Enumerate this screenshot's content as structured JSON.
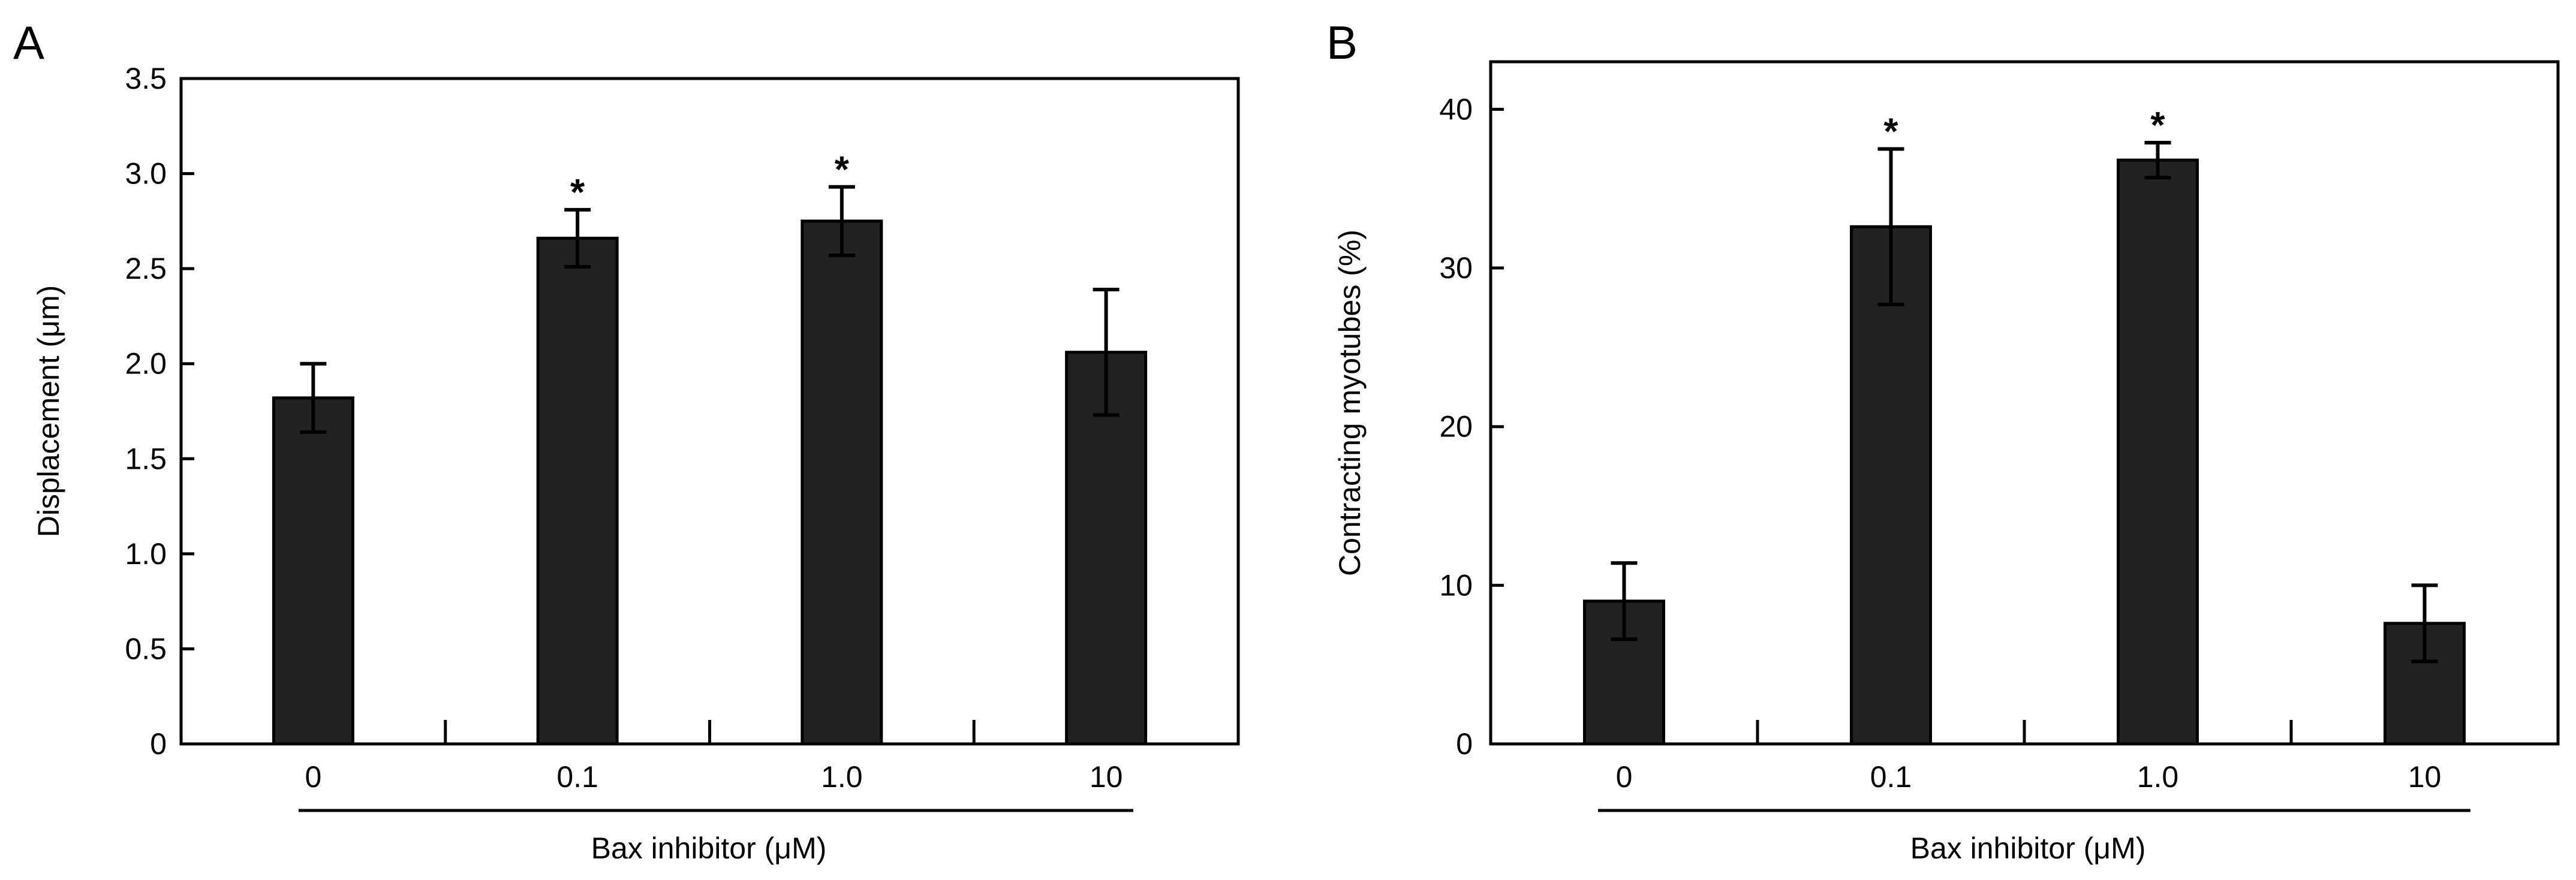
{
  "chart_data": [
    {
      "type": "bar",
      "panel_label": "A",
      "categories": [
        "0",
        "0.1",
        "1.0",
        "10"
      ],
      "values": [
        1.82,
        2.66,
        2.75,
        2.06
      ],
      "errors": [
        0.18,
        0.15,
        0.18,
        0.33
      ],
      "significant": [
        false,
        true,
        true,
        false
      ],
      "significance_marker": "*",
      "xlabel": "Bax inhibitor (μM)",
      "ylabel": "Displacement (μm)",
      "ylim": [
        0,
        3.5
      ],
      "yticks": [
        "0",
        "0.5",
        "1.0",
        "1.5",
        "2.0",
        "2.5",
        "3.0",
        "3.5"
      ],
      "bar_color": "#222222"
    },
    {
      "type": "bar",
      "panel_label": "B",
      "categories": [
        "0",
        "0.1",
        "1.0",
        "10"
      ],
      "values": [
        9.0,
        32.6,
        36.8,
        7.6
      ],
      "errors": [
        2.4,
        4.9,
        1.1,
        2.4
      ],
      "significant": [
        false,
        true,
        true,
        false
      ],
      "significance_marker": "*",
      "xlabel": "Bax inhibitor (μM)",
      "ylabel": "Contracting myotubes (%)",
      "ylim": [
        0,
        43
      ],
      "yticks": [
        "0",
        "10",
        "20",
        "30",
        "40"
      ],
      "bar_color": "#222222"
    }
  ]
}
